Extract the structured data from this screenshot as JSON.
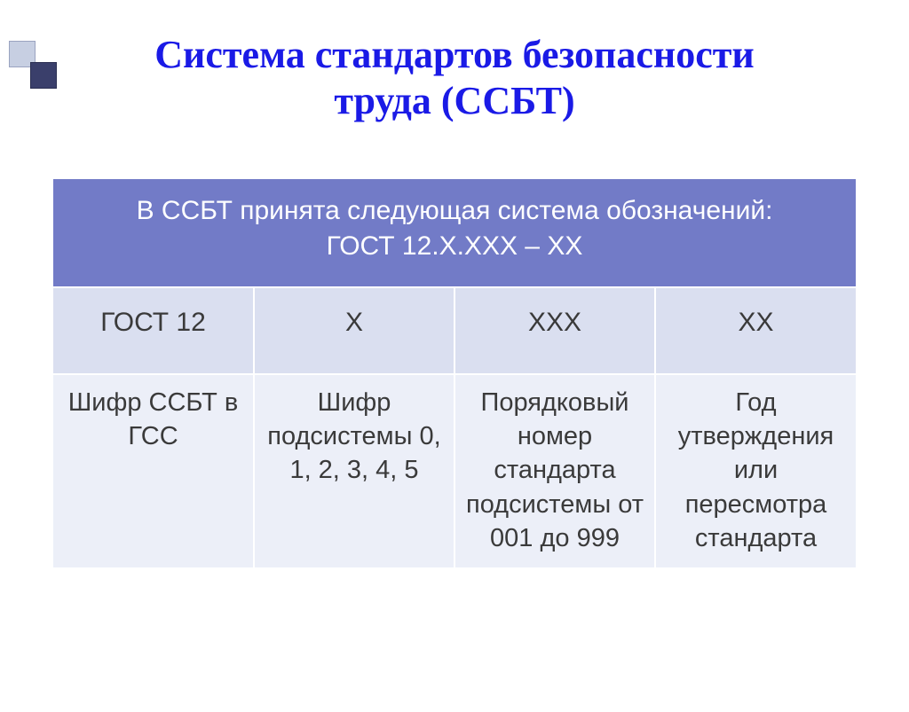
{
  "title_line1": "Система стандартов безопасности",
  "title_line2": "труда  (ССБТ)",
  "colors": {
    "title": "#1a1ae6",
    "header_bg": "#727bc7",
    "header_text": "#ffffff",
    "mid_bg": "#dadff0",
    "body_bg": "#eceff8",
    "body_text": "#3a3a3a",
    "deco_light": "#c7cfe2",
    "deco_dark": "#3a3f6b"
  },
  "table": {
    "header_line1": "В ССБТ принята следующая система обозначений:",
    "header_line2": "ГОСТ 12.Х.ХХХ – ХХ",
    "columns": [
      "ГОСТ 12",
      "Х",
      "ХХХ",
      "ХХ"
    ],
    "descriptions": [
      "Шифр ССБТ в ГСС",
      "Шифр подсистемы 0, 1, 2, 3, 4, 5",
      "Порядковый номер стандарта подсистемы от 001 до 999",
      "Год утверждения или пересмотра стандарта"
    ]
  }
}
